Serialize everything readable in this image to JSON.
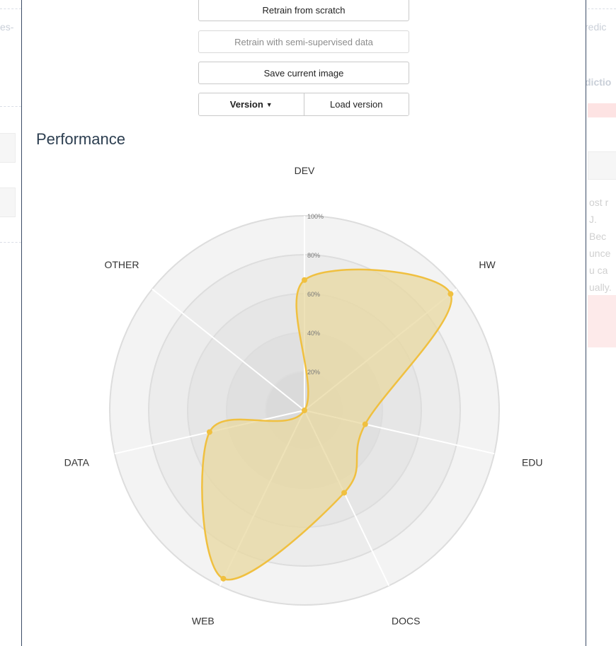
{
  "background": {
    "left_fragment": "es-",
    "right_fragment": "redic",
    "right_fragment_2": "dictio",
    "right_para": [
      "ost r",
      "J. Bec",
      "unce",
      "u  ca",
      "ually."
    ]
  },
  "controls": {
    "retrain_scratch": "Retrain from scratch",
    "retrain_semi": "Retrain with semi-supervised data",
    "save_image": "Save current image",
    "version": "Version",
    "load_version": "Load version"
  },
  "section_title": "Performance",
  "colors": {
    "fill": "#e8d8a0",
    "stroke": "#f0c040",
    "point": "#f0c040"
  },
  "chart_data": {
    "type": "radar",
    "title": "",
    "categories": [
      "DEV",
      "HW",
      "EDU",
      "DOCS",
      "WEB",
      "DATA",
      "OTHER"
    ],
    "series": [
      {
        "values": [
          67,
          96,
          32,
          47,
          96,
          50,
          0
        ]
      }
    ],
    "rlim": [
      0,
      100
    ],
    "ticks": [
      "20%",
      "40%",
      "60%",
      "80%",
      "100%"
    ]
  }
}
